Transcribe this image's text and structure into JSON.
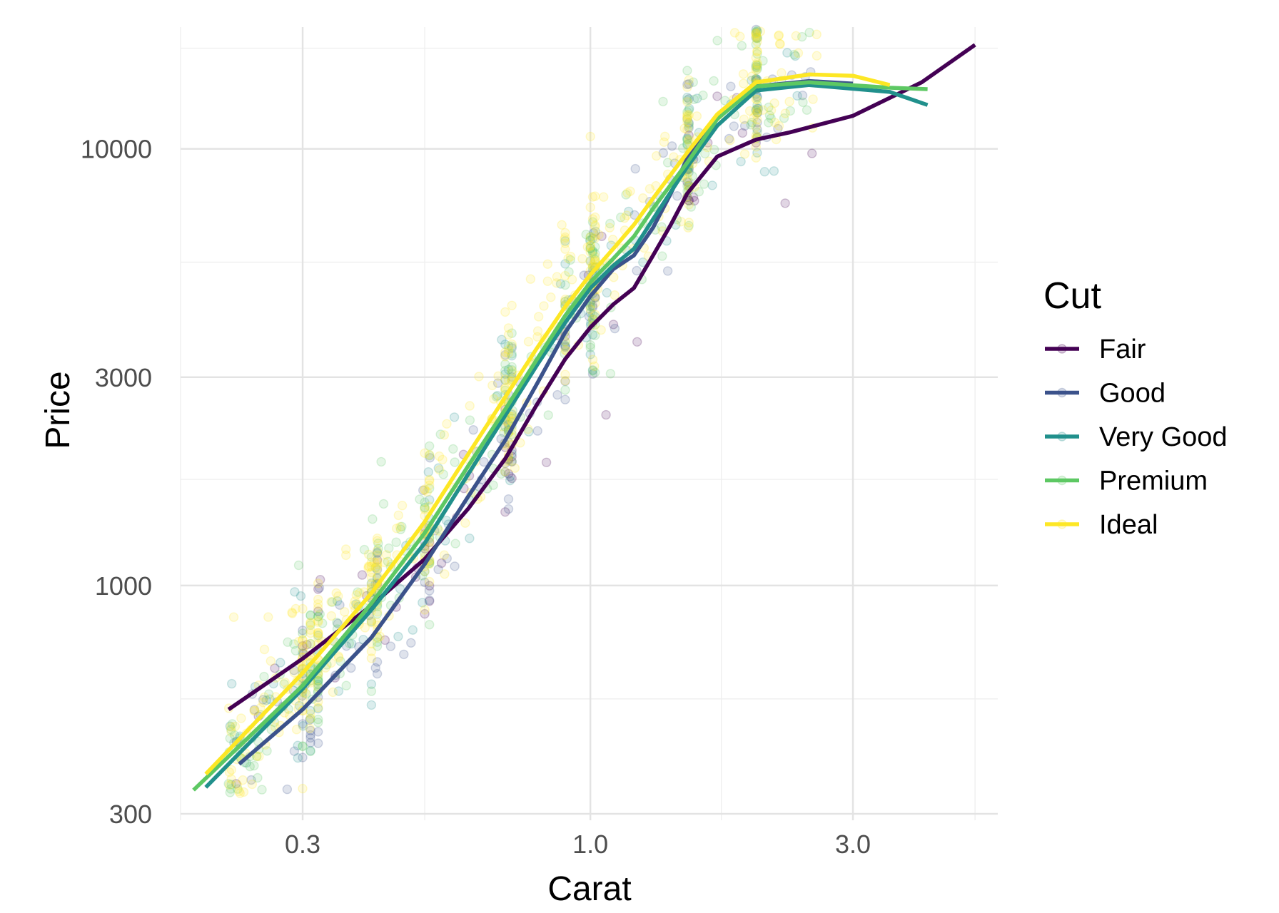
{
  "chart_data": {
    "type": "scatter",
    "title": "",
    "xlabel": "Carat",
    "ylabel": "Price",
    "x_scale": "log10",
    "y_scale": "log10",
    "xlim": [
      0.18,
      5.5
    ],
    "ylim": [
      290,
      19000
    ],
    "x_ticks": [
      {
        "value": 0.3,
        "label": "0.3"
      },
      {
        "value": 1.0,
        "label": "1.0"
      },
      {
        "value": 3.0,
        "label": "3.0"
      }
    ],
    "x_minor_ticks": [
      0.18,
      0.5,
      1.73,
      5.0
    ],
    "y_ticks": [
      {
        "value": 300,
        "label": "300"
      },
      {
        "value": 1000,
        "label": "1000"
      },
      {
        "value": 3000,
        "label": "3000"
      },
      {
        "value": 10000,
        "label": "10000"
      }
    ],
    "y_minor_ticks": [
      550,
      1750,
      5500,
      17000
    ],
    "grid": true,
    "legend": {
      "title": "Cut",
      "position": "right"
    },
    "series": [
      {
        "name": "Fair",
        "color": "#440154",
        "smooth": [
          [
            0.22,
            520
          ],
          [
            0.3,
            680
          ],
          [
            0.4,
            900
          ],
          [
            0.5,
            1150
          ],
          [
            0.6,
            1500
          ],
          [
            0.7,
            1950
          ],
          [
            0.8,
            2600
          ],
          [
            0.9,
            3300
          ],
          [
            1.0,
            3900
          ],
          [
            1.1,
            4400
          ],
          [
            1.2,
            4800
          ],
          [
            1.3,
            5700
          ],
          [
            1.4,
            6700
          ],
          [
            1.5,
            7900
          ],
          [
            1.7,
            9600
          ],
          [
            2.0,
            10500
          ],
          [
            2.3,
            10900
          ],
          [
            3.0,
            11900
          ],
          [
            4.0,
            14200
          ],
          [
            5.0,
            17300
          ]
        ]
      },
      {
        "name": "Good",
        "color": "#3B528B",
        "smooth": [
          [
            0.23,
            390
          ],
          [
            0.3,
            520
          ],
          [
            0.4,
            760
          ],
          [
            0.5,
            1120
          ],
          [
            0.6,
            1600
          ],
          [
            0.7,
            2150
          ],
          [
            0.8,
            2900
          ],
          [
            0.9,
            3800
          ],
          [
            1.0,
            4600
          ],
          [
            1.1,
            5300
          ],
          [
            1.2,
            5700
          ],
          [
            1.3,
            6600
          ],
          [
            1.4,
            7900
          ],
          [
            1.5,
            9500
          ],
          [
            1.7,
            11800
          ],
          [
            2.0,
            13900
          ],
          [
            2.5,
            14300
          ],
          [
            3.0,
            14100
          ]
        ]
      },
      {
        "name": "Very Good",
        "color": "#21908C",
        "smooth": [
          [
            0.2,
            345
          ],
          [
            0.3,
            580
          ],
          [
            0.4,
            880
          ],
          [
            0.5,
            1250
          ],
          [
            0.6,
            1800
          ],
          [
            0.7,
            2450
          ],
          [
            0.8,
            3200
          ],
          [
            0.9,
            4000
          ],
          [
            1.0,
            4800
          ],
          [
            1.1,
            5400
          ],
          [
            1.2,
            5900
          ],
          [
            1.3,
            6900
          ],
          [
            1.5,
            9100
          ],
          [
            1.7,
            11300
          ],
          [
            2.0,
            13600
          ],
          [
            2.5,
            14000
          ],
          [
            3.5,
            13500
          ],
          [
            4.1,
            12600
          ]
        ]
      },
      {
        "name": "Premium",
        "color": "#5DC863",
        "smooth": [
          [
            0.19,
            340
          ],
          [
            0.3,
            590
          ],
          [
            0.4,
            910
          ],
          [
            0.5,
            1320
          ],
          [
            0.6,
            1880
          ],
          [
            0.7,
            2530
          ],
          [
            0.8,
            3300
          ],
          [
            0.9,
            4150
          ],
          [
            1.0,
            4950
          ],
          [
            1.1,
            5600
          ],
          [
            1.2,
            6300
          ],
          [
            1.3,
            7300
          ],
          [
            1.5,
            9300
          ],
          [
            1.7,
            11700
          ],
          [
            2.0,
            13900
          ],
          [
            2.5,
            14200
          ],
          [
            3.5,
            13800
          ],
          [
            4.1,
            13700
          ]
        ]
      },
      {
        "name": "Ideal",
        "color": "#FDE725",
        "smooth": [
          [
            0.2,
            370
          ],
          [
            0.3,
            630
          ],
          [
            0.4,
            960
          ],
          [
            0.5,
            1400
          ],
          [
            0.6,
            2000
          ],
          [
            0.7,
            2700
          ],
          [
            0.8,
            3500
          ],
          [
            0.9,
            4350
          ],
          [
            1.0,
            5150
          ],
          [
            1.1,
            5900
          ],
          [
            1.2,
            6700
          ],
          [
            1.3,
            7700
          ],
          [
            1.5,
            9800
          ],
          [
            1.7,
            12000
          ],
          [
            2.0,
            14200
          ],
          [
            2.5,
            14800
          ],
          [
            3.0,
            14700
          ],
          [
            3.5,
            14000
          ]
        ]
      }
    ]
  }
}
